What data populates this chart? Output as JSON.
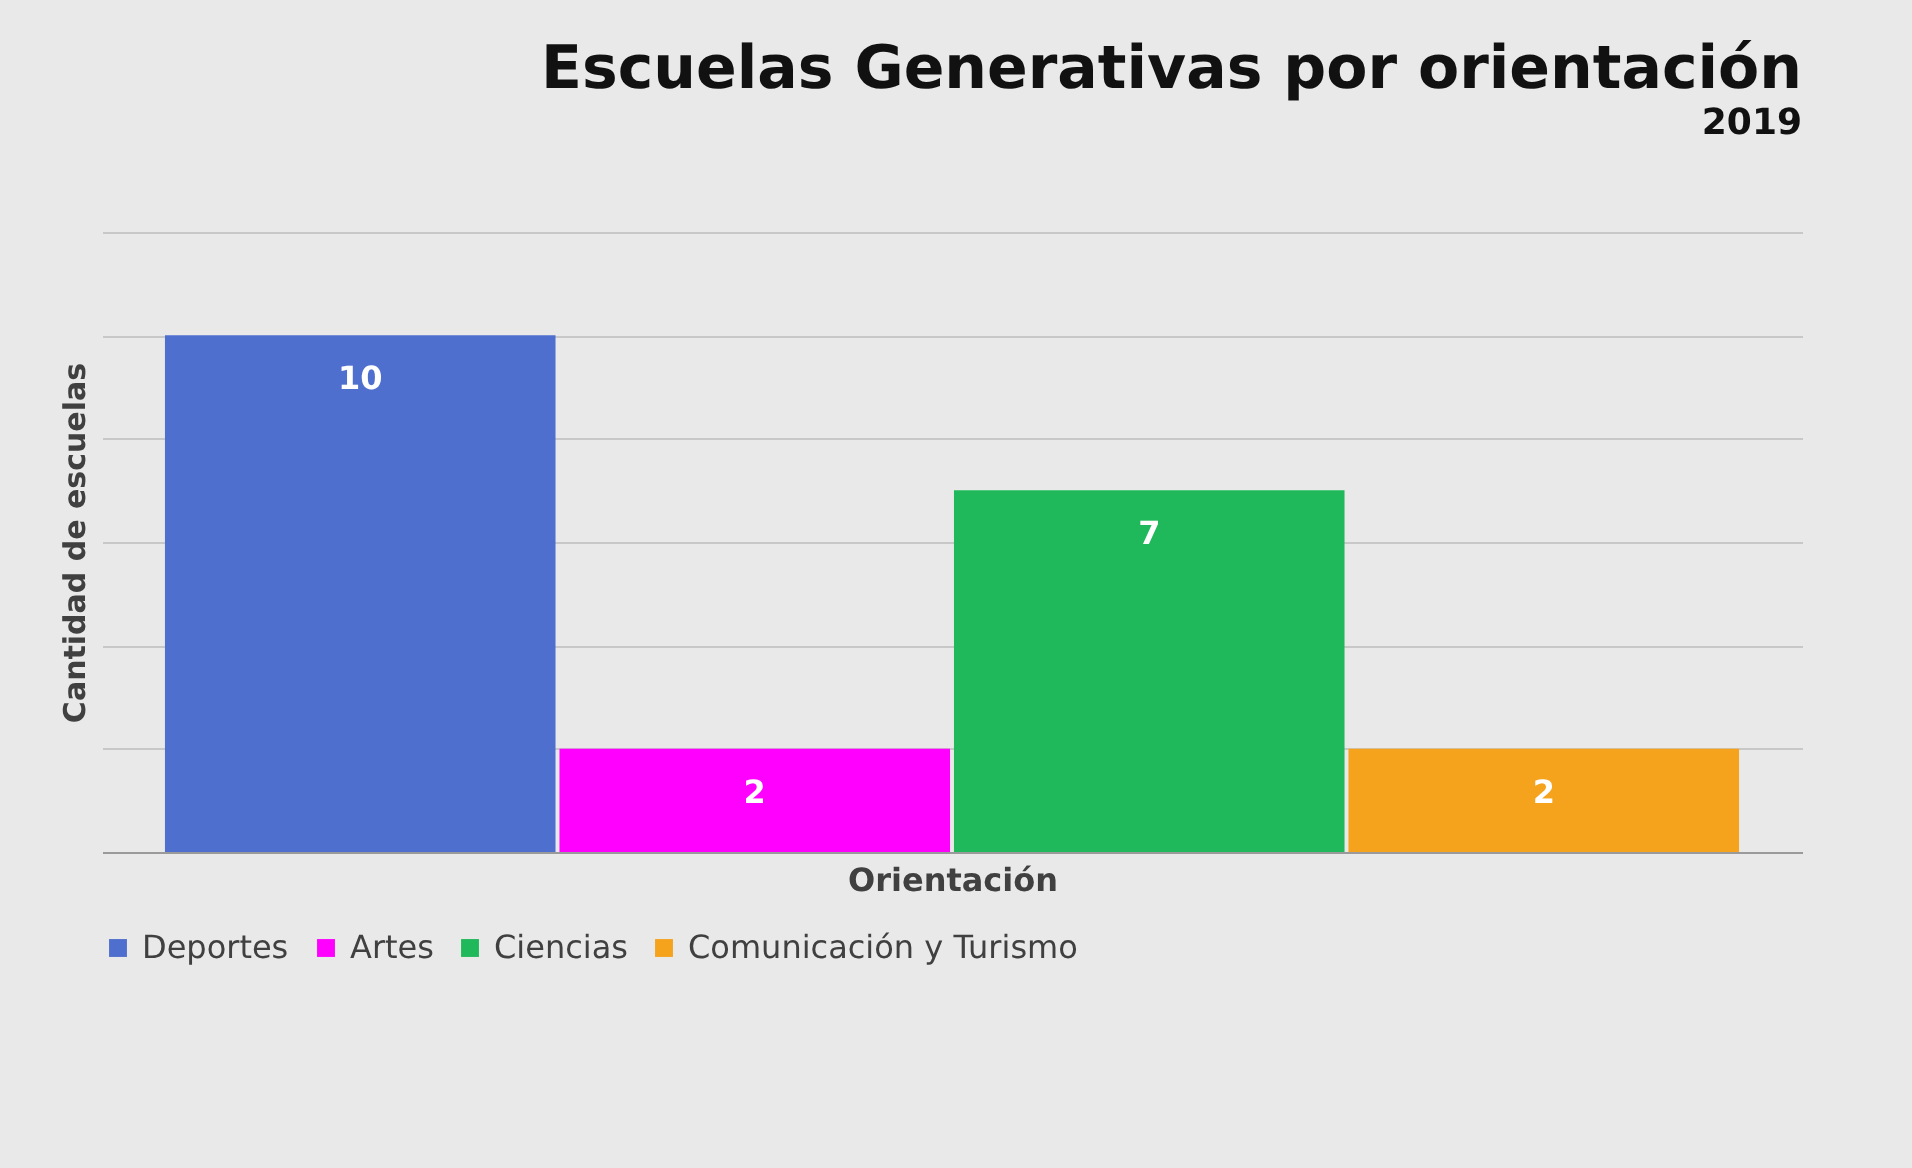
{
  "chart_data": {
    "type": "bar",
    "title": "Escuelas Generativas por orientación",
    "subtitle": "2019",
    "xlabel": "Orientación",
    "ylabel": "Cantidad de escuelas",
    "categories": [
      null
    ],
    "series": [
      {
        "name": "Deportes",
        "color": "#4f6fcf",
        "values": [
          10
        ]
      },
      {
        "name": "Artes",
        "color": "#ff00ff",
        "values": [
          2
        ]
      },
      {
        "name": "Ciencias",
        "color": "#1fb85a",
        "values": [
          7
        ]
      },
      {
        "name": "Comunicación y Turismo",
        "color": "#f5a21c",
        "values": [
          2
        ]
      }
    ],
    "ylim": [
      0,
      12
    ],
    "yticks": [
      {
        "value": 0,
        "label": null
      },
      {
        "value": 2,
        "label": null
      },
      {
        "value": 4,
        "label": null
      },
      {
        "value": 6,
        "label": null
      },
      {
        "value": 8,
        "label": null
      },
      {
        "value": 10,
        "label": null
      },
      {
        "value": 12,
        "label": null
      }
    ],
    "grid": "y",
    "legend": "bottom",
    "data_labels": true
  }
}
